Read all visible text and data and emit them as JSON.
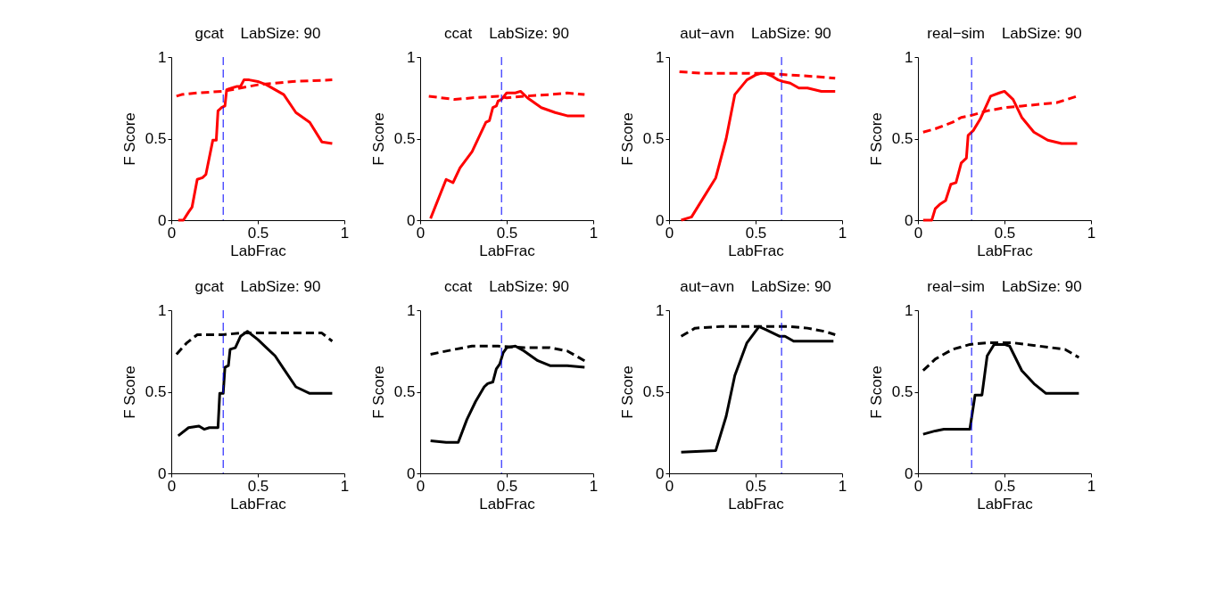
{
  "chart_data": [
    {
      "type": "line",
      "title": "gcat    LabSize: 90",
      "xlabel": "LabFrac",
      "ylabel": "F Score",
      "xlim": [
        0,
        1
      ],
      "ylim": [
        0,
        1
      ],
      "xticks": [
        0,
        0.5,
        1
      ],
      "yticks": [
        0,
        0.5,
        1
      ],
      "grid": false,
      "legend": false,
      "marker": "none",
      "ref_lines": [
        {
          "axis": "x",
          "value": 0.3,
          "color": "#0000ff",
          "line_style": "dashed"
        }
      ],
      "series": [
        {
          "color": "#ff0000",
          "line_style": "solid",
          "x": [
            0.04,
            0.07,
            0.1,
            0.12,
            0.15,
            0.18,
            0.2,
            0.24,
            0.26,
            0.27,
            0.29,
            0.31,
            0.32,
            0.35,
            0.38,
            0.4,
            0.42,
            0.45,
            0.5,
            0.55,
            0.6,
            0.65,
            0.72,
            0.8,
            0.87,
            0.93
          ],
          "values": [
            0,
            0,
            0.05,
            0.08,
            0.25,
            0.26,
            0.28,
            0.49,
            0.49,
            0.67,
            0.69,
            0.7,
            0.8,
            0.81,
            0.82,
            0.82,
            0.86,
            0.86,
            0.85,
            0.83,
            0.8,
            0.77,
            0.66,
            0.6,
            0.48,
            0.47
          ]
        },
        {
          "color": "#ff0000",
          "line_style": "dashed",
          "x": [
            0.03,
            0.06,
            0.15,
            0.3,
            0.4,
            0.5,
            0.7,
            0.93
          ],
          "values": [
            0.76,
            0.77,
            0.78,
            0.79,
            0.81,
            0.83,
            0.85,
            0.86
          ]
        }
      ]
    },
    {
      "type": "line",
      "title": "ccat    LabSize: 90",
      "xlabel": "LabFrac",
      "ylabel": "F Score",
      "xlim": [
        0,
        1
      ],
      "ylim": [
        0,
        1
      ],
      "xticks": [
        0,
        0.5,
        1
      ],
      "yticks": [
        0,
        0.5,
        1
      ],
      "grid": false,
      "legend": false,
      "marker": "none",
      "ref_lines": [
        {
          "axis": "x",
          "value": 0.47,
          "color": "#0000ff",
          "line_style": "dashed"
        }
      ],
      "series": [
        {
          "color": "#ff0000",
          "line_style": "solid",
          "x": [
            0.06,
            0.15,
            0.19,
            0.23,
            0.3,
            0.38,
            0.4,
            0.42,
            0.44,
            0.45,
            0.47,
            0.5,
            0.55,
            0.58,
            0.62,
            0.7,
            0.78,
            0.85,
            0.95
          ],
          "values": [
            0.01,
            0.25,
            0.23,
            0.32,
            0.42,
            0.6,
            0.61,
            0.69,
            0.7,
            0.73,
            0.74,
            0.78,
            0.78,
            0.79,
            0.75,
            0.69,
            0.66,
            0.64,
            0.64
          ]
        },
        {
          "color": "#ff0000",
          "line_style": "dashed",
          "x": [
            0.05,
            0.2,
            0.3,
            0.45,
            0.5,
            0.6,
            0.75,
            0.85,
            0.95
          ],
          "values": [
            0.76,
            0.74,
            0.75,
            0.76,
            0.75,
            0.76,
            0.77,
            0.78,
            0.77
          ]
        }
      ]
    },
    {
      "type": "line",
      "title": "aut−avn    LabSize: 90",
      "xlabel": "LabFrac",
      "ylabel": "F Score",
      "xlim": [
        0,
        1
      ],
      "ylim": [
        0,
        1
      ],
      "xticks": [
        0,
        0.5,
        1
      ],
      "yticks": [
        0,
        0.5,
        1
      ],
      "grid": false,
      "legend": false,
      "marker": "none",
      "ref_lines": [
        {
          "axis": "x",
          "value": 0.65,
          "color": "#0000ff",
          "line_style": "dashed"
        }
      ],
      "series": [
        {
          "color": "#ff0000",
          "line_style": "solid",
          "x": [
            0.07,
            0.13,
            0.2,
            0.27,
            0.33,
            0.38,
            0.45,
            0.5,
            0.53,
            0.56,
            0.6,
            0.63,
            0.66,
            0.7,
            0.75,
            0.8,
            0.88,
            0.96
          ],
          "values": [
            0,
            0.02,
            0.14,
            0.26,
            0.5,
            0.77,
            0.86,
            0.89,
            0.9,
            0.9,
            0.88,
            0.86,
            0.85,
            0.84,
            0.81,
            0.81,
            0.79,
            0.79
          ]
        },
        {
          "color": "#ff0000",
          "line_style": "dashed",
          "x": [
            0.06,
            0.2,
            0.4,
            0.55,
            0.7,
            0.85,
            0.96
          ],
          "values": [
            0.91,
            0.9,
            0.9,
            0.9,
            0.89,
            0.88,
            0.87
          ]
        }
      ]
    },
    {
      "type": "line",
      "title": "real−sim    LabSize: 90",
      "xlabel": "LabFrac",
      "ylabel": "F Score",
      "xlim": [
        0,
        1
      ],
      "ylim": [
        0,
        1
      ],
      "xticks": [
        0,
        0.5,
        1
      ],
      "yticks": [
        0,
        0.5,
        1
      ],
      "grid": false,
      "legend": false,
      "marker": "none",
      "ref_lines": [
        {
          "axis": "x",
          "value": 0.31,
          "color": "#0000ff",
          "line_style": "dashed"
        }
      ],
      "series": [
        {
          "color": "#ff0000",
          "line_style": "solid",
          "x": [
            0.03,
            0.08,
            0.1,
            0.13,
            0.16,
            0.19,
            0.22,
            0.25,
            0.28,
            0.29,
            0.32,
            0.36,
            0.42,
            0.47,
            0.5,
            0.55,
            0.6,
            0.67,
            0.75,
            0.83,
            0.92
          ],
          "values": [
            0,
            0,
            0.07,
            0.1,
            0.12,
            0.22,
            0.23,
            0.35,
            0.38,
            0.52,
            0.55,
            0.62,
            0.76,
            0.78,
            0.79,
            0.74,
            0.63,
            0.54,
            0.49,
            0.47,
            0.47
          ]
        },
        {
          "color": "#ff0000",
          "line_style": "dashed",
          "x": [
            0.03,
            0.1,
            0.2,
            0.25,
            0.3,
            0.4,
            0.5,
            0.6,
            0.7,
            0.8,
            0.92
          ],
          "values": [
            0.54,
            0.56,
            0.6,
            0.63,
            0.64,
            0.67,
            0.69,
            0.7,
            0.71,
            0.72,
            0.76
          ]
        }
      ]
    },
    {
      "type": "line",
      "title": "gcat    LabSize: 90",
      "xlabel": "LabFrac",
      "ylabel": "F Score",
      "xlim": [
        0,
        1
      ],
      "ylim": [
        0,
        1
      ],
      "xticks": [
        0,
        0.5,
        1
      ],
      "yticks": [
        0,
        0.5,
        1
      ],
      "grid": false,
      "legend": false,
      "marker": "none",
      "ref_lines": [
        {
          "axis": "x",
          "value": 0.3,
          "color": "#0000ff",
          "line_style": "dashed"
        }
      ],
      "series": [
        {
          "color": "#000000",
          "line_style": "solid",
          "x": [
            0.04,
            0.1,
            0.16,
            0.19,
            0.22,
            0.27,
            0.28,
            0.3,
            0.31,
            0.33,
            0.34,
            0.37,
            0.4,
            0.44,
            0.5,
            0.55,
            0.6,
            0.65,
            0.72,
            0.8,
            0.93
          ],
          "values": [
            0.23,
            0.28,
            0.29,
            0.27,
            0.28,
            0.28,
            0.49,
            0.49,
            0.65,
            0.66,
            0.76,
            0.77,
            0.84,
            0.87,
            0.82,
            0.77,
            0.72,
            0.64,
            0.53,
            0.49,
            0.49
          ]
        },
        {
          "color": "#000000",
          "line_style": "dashed",
          "x": [
            0.03,
            0.09,
            0.15,
            0.3,
            0.4,
            0.5,
            0.7,
            0.87,
            0.93
          ],
          "values": [
            0.73,
            0.8,
            0.85,
            0.85,
            0.86,
            0.86,
            0.86,
            0.86,
            0.81
          ]
        }
      ]
    },
    {
      "type": "line",
      "title": "ccat    LabSize: 90",
      "xlabel": "LabFrac",
      "ylabel": "F Score",
      "xlim": [
        0,
        1
      ],
      "ylim": [
        0,
        1
      ],
      "xticks": [
        0,
        0.5,
        1
      ],
      "yticks": [
        0,
        0.5,
        1
      ],
      "grid": false,
      "legend": false,
      "marker": "none",
      "ref_lines": [
        {
          "axis": "x",
          "value": 0.47,
          "color": "#0000ff",
          "line_style": "dashed"
        }
      ],
      "series": [
        {
          "color": "#000000",
          "line_style": "solid",
          "x": [
            0.06,
            0.15,
            0.22,
            0.27,
            0.32,
            0.37,
            0.39,
            0.42,
            0.44,
            0.46,
            0.48,
            0.5,
            0.55,
            0.6,
            0.68,
            0.75,
            0.85,
            0.95
          ],
          "values": [
            0.2,
            0.19,
            0.19,
            0.33,
            0.44,
            0.53,
            0.55,
            0.56,
            0.64,
            0.67,
            0.74,
            0.77,
            0.78,
            0.75,
            0.69,
            0.66,
            0.66,
            0.65
          ]
        },
        {
          "color": "#000000",
          "line_style": "dashed",
          "x": [
            0.06,
            0.2,
            0.3,
            0.45,
            0.6,
            0.75,
            0.85,
            0.95
          ],
          "values": [
            0.73,
            0.76,
            0.78,
            0.78,
            0.77,
            0.77,
            0.75,
            0.69
          ]
        }
      ]
    },
    {
      "type": "line",
      "title": "aut−avn    LabSize: 90",
      "xlabel": "LabFrac",
      "ylabel": "F Score",
      "xlim": [
        0,
        1
      ],
      "ylim": [
        0,
        1
      ],
      "xticks": [
        0,
        0.5,
        1
      ],
      "yticks": [
        0,
        0.5,
        1
      ],
      "grid": false,
      "legend": false,
      "marker": "none",
      "ref_lines": [
        {
          "axis": "x",
          "value": 0.65,
          "color": "#0000ff",
          "line_style": "dashed"
        }
      ],
      "series": [
        {
          "color": "#000000",
          "line_style": "solid",
          "x": [
            0.07,
            0.27,
            0.33,
            0.38,
            0.45,
            0.52,
            0.56,
            0.6,
            0.64,
            0.67,
            0.72,
            0.8,
            0.95
          ],
          "values": [
            0.13,
            0.14,
            0.35,
            0.6,
            0.8,
            0.9,
            0.88,
            0.86,
            0.84,
            0.84,
            0.81,
            0.81,
            0.81
          ]
        },
        {
          "color": "#000000",
          "line_style": "dashed",
          "x": [
            0.07,
            0.15,
            0.3,
            0.5,
            0.7,
            0.8,
            0.9,
            0.96
          ],
          "values": [
            0.84,
            0.89,
            0.9,
            0.9,
            0.9,
            0.89,
            0.87,
            0.85
          ]
        }
      ]
    },
    {
      "type": "line",
      "title": "real−sim    LabSize: 90",
      "xlabel": "LabFrac",
      "ylabel": "F Score",
      "xlim": [
        0,
        1
      ],
      "ylim": [
        0,
        1
      ],
      "xticks": [
        0,
        0.5,
        1
      ],
      "yticks": [
        0,
        0.5,
        1
      ],
      "grid": false,
      "legend": false,
      "marker": "none",
      "ref_lines": [
        {
          "axis": "x",
          "value": 0.31,
          "color": "#0000ff",
          "line_style": "dashed"
        }
      ],
      "series": [
        {
          "color": "#000000",
          "line_style": "solid",
          "x": [
            0.03,
            0.1,
            0.15,
            0.22,
            0.26,
            0.3,
            0.33,
            0.37,
            0.4,
            0.44,
            0.5,
            0.53,
            0.6,
            0.67,
            0.74,
            0.85,
            0.93
          ],
          "values": [
            0.24,
            0.26,
            0.27,
            0.27,
            0.27,
            0.27,
            0.48,
            0.48,
            0.72,
            0.79,
            0.79,
            0.78,
            0.63,
            0.55,
            0.49,
            0.49,
            0.49
          ]
        },
        {
          "color": "#000000",
          "line_style": "dashed",
          "x": [
            0.03,
            0.1,
            0.2,
            0.3,
            0.4,
            0.55,
            0.7,
            0.85,
            0.93
          ],
          "values": [
            0.63,
            0.7,
            0.76,
            0.79,
            0.8,
            0.8,
            0.78,
            0.76,
            0.71
          ]
        }
      ]
    }
  ]
}
